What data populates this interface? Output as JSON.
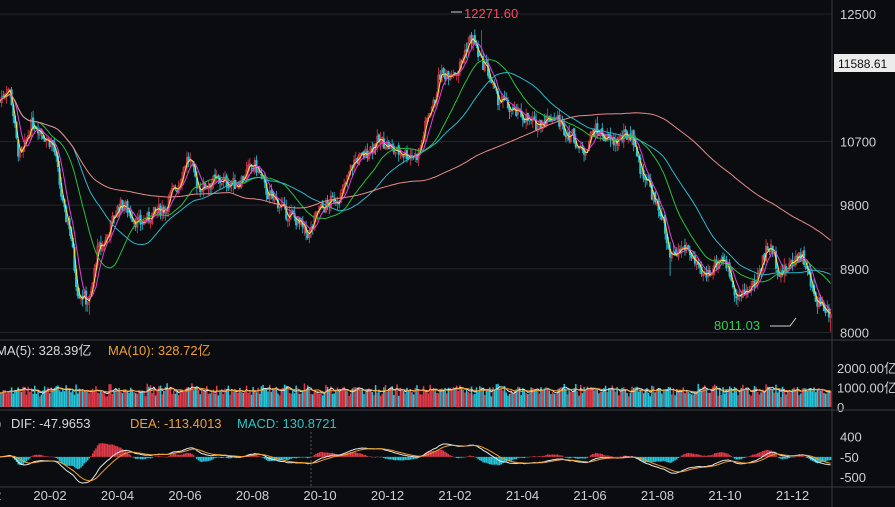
{
  "chart_data": [
    {
      "type": "candlestick",
      "panel": "price",
      "yticks": [
        12500,
        10700,
        9800,
        8900,
        8000
      ],
      "ylim": [
        7950,
        12700
      ],
      "current_price": "11588.61",
      "high_label": "12271.60",
      "low_label": "8011.03",
      "x_tick_labels": [
        "20-02",
        "20-04",
        "20-06",
        "20-08",
        "20-10",
        "20-12",
        "21-02",
        "21-04",
        "21-06",
        "21-08",
        "21-10",
        "21-12"
      ],
      "close_anchors": [
        {
          "d": "2020-01-01",
          "v": 11100
        },
        {
          "d": "2020-01-15",
          "v": 11450
        },
        {
          "d": "2020-01-25",
          "v": 10500
        },
        {
          "d": "2020-02-05",
          "v": 10950
        },
        {
          "d": "2020-02-20",
          "v": 10700
        },
        {
          "d": "2020-03-05",
          "v": 9600
        },
        {
          "d": "2020-03-15",
          "v": 8550
        },
        {
          "d": "2020-03-23",
          "v": 8450
        },
        {
          "d": "2020-04-01",
          "v": 9200
        },
        {
          "d": "2020-04-20",
          "v": 9800
        },
        {
          "d": "2020-05-05",
          "v": 9550
        },
        {
          "d": "2020-05-25",
          "v": 9750
        },
        {
          "d": "2020-06-05",
          "v": 10050
        },
        {
          "d": "2020-06-15",
          "v": 10450
        },
        {
          "d": "2020-06-25",
          "v": 10050
        },
        {
          "d": "2020-07-10",
          "v": 10150
        },
        {
          "d": "2020-07-25",
          "v": 10100
        },
        {
          "d": "2020-08-10",
          "v": 10350
        },
        {
          "d": "2020-08-25",
          "v": 9900
        },
        {
          "d": "2020-09-10",
          "v": 9650
        },
        {
          "d": "2020-09-25",
          "v": 9400
        },
        {
          "d": "2020-10-05",
          "v": 9750
        },
        {
          "d": "2020-10-20",
          "v": 9900
        },
        {
          "d": "2020-11-05",
          "v": 10450
        },
        {
          "d": "2020-11-25",
          "v": 10700
        },
        {
          "d": "2020-12-10",
          "v": 10550
        },
        {
          "d": "2020-12-25",
          "v": 10500
        },
        {
          "d": "2021-01-08",
          "v": 11200
        },
        {
          "d": "2021-01-15",
          "v": 11650
        },
        {
          "d": "2021-01-28",
          "v": 11700
        },
        {
          "d": "2021-02-10",
          "v": 12150
        },
        {
          "d": "2021-02-20",
          "v": 11800
        },
        {
          "d": "2021-03-05",
          "v": 11300
        },
        {
          "d": "2021-03-20",
          "v": 11100
        },
        {
          "d": "2021-04-05",
          "v": 10950
        },
        {
          "d": "2021-04-20",
          "v": 11050
        },
        {
          "d": "2021-05-05",
          "v": 10800
        },
        {
          "d": "2021-05-15",
          "v": 10550
        },
        {
          "d": "2021-05-25",
          "v": 10850
        },
        {
          "d": "2021-06-10",
          "v": 10700
        },
        {
          "d": "2021-06-25",
          "v": 10800
        },
        {
          "d": "2021-07-05",
          "v": 10250
        },
        {
          "d": "2021-07-20",
          "v": 9700
        },
        {
          "d": "2021-07-28",
          "v": 9050
        },
        {
          "d": "2021-08-10",
          "v": 9200
        },
        {
          "d": "2021-08-25",
          "v": 8800
        },
        {
          "d": "2021-09-10",
          "v": 9050
        },
        {
          "d": "2021-09-25",
          "v": 8500
        },
        {
          "d": "2021-10-05",
          "v": 8650
        },
        {
          "d": "2021-10-20",
          "v": 9200
        },
        {
          "d": "2021-10-30",
          "v": 8850
        },
        {
          "d": "2021-11-15",
          "v": 9100
        },
        {
          "d": "2021-11-30",
          "v": 8450
        },
        {
          "d": "2021-12-10",
          "v": 8300
        },
        {
          "d": "2021-12-20",
          "v": 8050
        }
      ],
      "ma_lines_colors": [
        "#ffe04a",
        "#e040e0",
        "#28c03a",
        "#29b8c8",
        "#e88a8a"
      ]
    },
    {
      "type": "bar",
      "panel": "volume",
      "legend": [
        {
          "text": "MA(5): 328.39亿",
          "color": "#d8d8d8"
        },
        {
          "text": "MA(10): 328.72亿",
          "color": "#f0a030"
        }
      ],
      "yticks_labels": [
        "2000.00亿",
        "1000.00亿",
        "0"
      ],
      "yticks_values": [
        2000,
        1000,
        0
      ],
      "ylim": [
        0,
        2300
      ]
    },
    {
      "type": "bar",
      "panel": "macd",
      "legend": [
        {
          "text": "DIF: -47.9653",
          "color": "#d8d8d8"
        },
        {
          "text": "DEA: -113.4013",
          "color": "#f0a030"
        },
        {
          "text": "MACD: 130.8721",
          "color": "#2bc4c4"
        }
      ],
      "yticks_labels": [
        "400",
        "-50",
        "-500"
      ],
      "yticks_values": [
        400,
        -50,
        -500
      ],
      "ylim": [
        -650,
        500
      ]
    }
  ],
  "colors": {
    "up": "#e23a4a",
    "down": "#26c6da",
    "grid": "#24262e",
    "axis_text": "#cfcfcf",
    "high_label": "#ff4a5a",
    "low_label": "#32cc50",
    "badge_bg": "#ececec"
  }
}
